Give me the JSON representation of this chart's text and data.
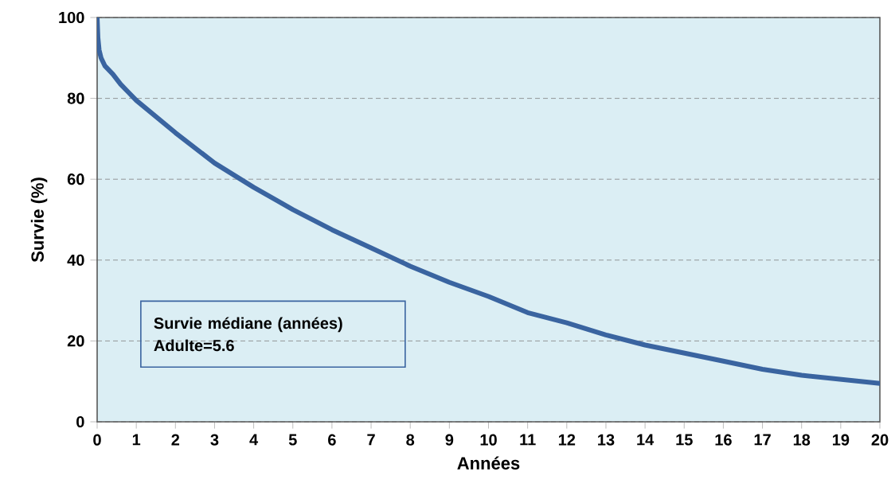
{
  "chart_data": {
    "type": "line",
    "xlabel": "Années",
    "ylabel": "Survie (%)",
    "x": [
      0,
      0.02,
      0.05,
      0.1,
      0.2,
      0.4,
      0.6,
      0.8,
      1,
      2,
      3,
      4,
      5,
      6,
      7,
      8,
      9,
      10,
      11,
      12,
      13,
      14,
      15,
      16,
      17,
      18,
      19,
      20
    ],
    "series": [
      {
        "color": "#3a64a0",
        "values": [
          100,
          95,
          92,
          90,
          88,
          86,
          83.5,
          81.5,
          79.5,
          71.5,
          64,
          58,
          52.5,
          47.5,
          43,
          38.5,
          34.5,
          31,
          27,
          24.5,
          21.5,
          19,
          17,
          15,
          13,
          11.5,
          10.5,
          9.5
        ]
      }
    ],
    "xlim": [
      0,
      20
    ],
    "ylim": [
      0,
      100
    ],
    "xticks": [
      0,
      1,
      2,
      3,
      4,
      5,
      6,
      7,
      8,
      9,
      10,
      11,
      12,
      13,
      14,
      15,
      16,
      17,
      18,
      19,
      20
    ],
    "yticks": [
      0,
      20,
      40,
      60,
      80,
      100
    ],
    "grid": "y",
    "marker": "none",
    "line_style": "solid",
    "annotations": [
      "Survie médiane (années)",
      "Adulte=5.6"
    ]
  }
}
